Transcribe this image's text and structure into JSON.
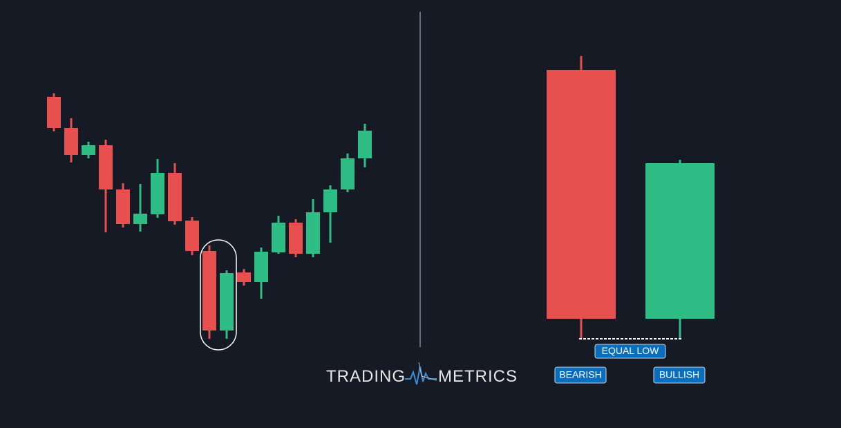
{
  "labels": {
    "equal_low": "EQUAL LOW",
    "bearish": "BEARISH",
    "bullish": "BULLISH"
  },
  "logo": {
    "left": "TRADING",
    "right": "METRICS"
  }
}
